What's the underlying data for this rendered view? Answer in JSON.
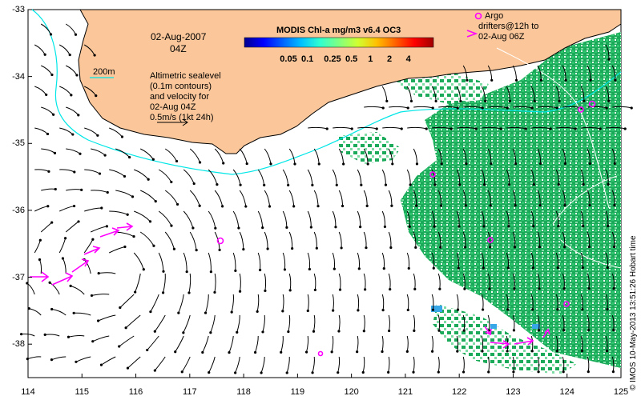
{
  "map": {
    "date_title": "02-Aug-2007",
    "time_title": "04Z",
    "bathy_label": "200m",
    "sealevel_note": [
      "Altimetric sealevel",
      "(0.1m contours)",
      "and velocity for",
      "02-Aug 04Z",
      "0.5m/s (1kt 24h)"
    ],
    "argo_legend": [
      "Argo",
      "drifters@12h to",
      "02-Aug 06Z"
    ],
    "credit": "© IMOS 10-May-2013 13:51:26 Hobart time",
    "colorbar": {
      "title": "MODIS Chl-a mg/m3 v6.4 OC3",
      "ticks": [
        "0.05",
        "0.1",
        "0.25",
        "0.5",
        "1",
        "2",
        "4"
      ],
      "tick_values": [
        0.05,
        0.1,
        0.25,
        0.5,
        1,
        2,
        4
      ],
      "range": [
        0.01,
        10
      ],
      "colors": [
        "#00008f",
        "#0000ff",
        "#0060ff",
        "#00c0ff",
        "#30ffd0",
        "#80ff80",
        "#d0ff30",
        "#ffc000",
        "#ff6000",
        "#ff0000",
        "#a00000"
      ]
    },
    "lon_ticks": [
      "114",
      "115",
      "116",
      "117",
      "118",
      "119",
      "120",
      "121",
      "122",
      "123",
      "124",
      "125"
    ],
    "lat_ticks": [
      "-33",
      "-34",
      "-35",
      "-36",
      "-37",
      "-38"
    ],
    "lon_range": [
      114,
      125
    ],
    "lat_range": [
      -33,
      -38.5
    ],
    "colors": {
      "land": "#fbc79a",
      "land_edge": "#000000",
      "bathy_200m": "#00e6e6",
      "chl_main": "#1aaa5a",
      "chl_light": "#7fdca4",
      "chl_blue": "#37a7e8",
      "argo": "#ff00ff",
      "vector": "#000000",
      "contour": "#ffffff"
    }
  }
}
